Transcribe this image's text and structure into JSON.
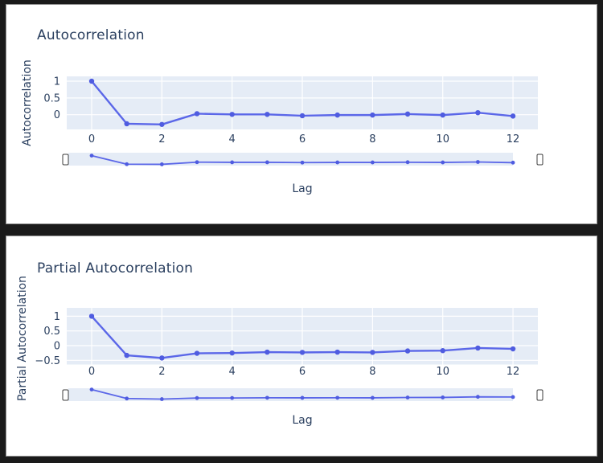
{
  "colors": {
    "page_bg": "#1a1a1a",
    "card_bg": "#ffffff",
    "plot_bg": "#e5ecf6",
    "grid": "#ffffff",
    "accent_line": "#5b67e8",
    "accent_marker": "#4f5ce0",
    "text": "#2a3f5f",
    "handle_border": "#3c3c3c",
    "handle_fill": "#ffffff"
  },
  "chart_data": [
    {
      "type": "line",
      "title": "Autocorrelation",
      "xlabel": "Lag",
      "ylabel": "Autocorrelation",
      "legend": "none",
      "grid": "on",
      "x": [
        0,
        1,
        2,
        3,
        4,
        5,
        6,
        7,
        8,
        9,
        10,
        11,
        12
      ],
      "values": [
        1.0,
        -0.27,
        -0.29,
        0.03,
        0.01,
        0.01,
        -0.03,
        -0.01,
        -0.01,
        0.02,
        -0.01,
        0.06,
        -0.04
      ],
      "xticks": {
        "values": [
          0,
          2,
          4,
          6,
          8,
          10,
          12
        ],
        "labels": [
          "0",
          "2",
          "4",
          "6",
          "8",
          "10",
          "12"
        ]
      },
      "yticks": {
        "values": [
          1,
          0.5,
          0
        ],
        "labels": [
          "1",
          "0.5",
          "0"
        ]
      },
      "xlim": [
        -0.7,
        12.7
      ],
      "ylim": [
        -0.44,
        1.14
      ],
      "rangeslider": {
        "present": true,
        "handles": 2
      }
    },
    {
      "type": "line",
      "title": "Partial Autocorrelation",
      "xlabel": "Lag",
      "ylabel": "Partial Autocorrelation",
      "legend": "none",
      "grid": "on",
      "x": [
        0,
        1,
        2,
        3,
        4,
        5,
        6,
        7,
        8,
        9,
        10,
        11,
        12
      ],
      "values": [
        1.0,
        -0.33,
        -0.42,
        -0.26,
        -0.25,
        -0.22,
        -0.23,
        -0.22,
        -0.23,
        -0.18,
        -0.17,
        -0.08,
        -0.11
      ],
      "xticks": {
        "values": [
          0,
          2,
          4,
          6,
          8,
          10,
          12
        ],
        "labels": [
          "0",
          "2",
          "4",
          "6",
          "8",
          "10",
          "12"
        ]
      },
      "yticks": {
        "values": [
          1,
          0.5,
          0,
          -0.5
        ],
        "labels": [
          "1",
          "0.5",
          "0",
          "−0.5"
        ]
      },
      "xlim": [
        -0.7,
        12.7
      ],
      "ylim": [
        -0.64,
        1.28
      ],
      "rangeslider": {
        "present": true,
        "handles": 2
      }
    }
  ]
}
